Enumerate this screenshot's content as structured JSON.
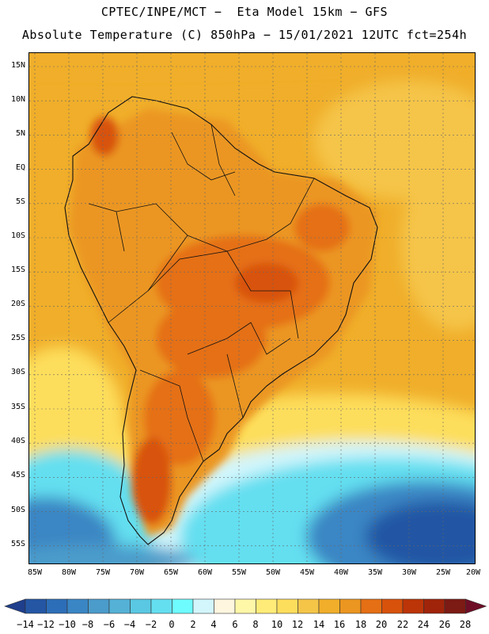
{
  "header": {
    "line1": "CPTEC/INPE/MCT −  Eta Model 15km − GFS",
    "line2": "Absolute Temperature (C) 850hPa − 15/01/2021 12UTC fct=254h"
  },
  "map": {
    "lat_labels": [
      "15N",
      "10N",
      "5N",
      "EQ",
      "5S",
      "10S",
      "15S",
      "20S",
      "25S",
      "30S",
      "35S",
      "40S",
      "45S",
      "50S",
      "55S"
    ],
    "lon_labels": [
      "85W",
      "80W",
      "75W",
      "70W",
      "65W",
      "60W",
      "55W",
      "50W",
      "45W",
      "40W",
      "35W",
      "30W",
      "25W",
      "20W"
    ],
    "lon_range": [
      -85,
      -20
    ],
    "lat_range": [
      -57,
      17
    ]
  },
  "colorbar": {
    "labels": [
      "−14",
      "−12",
      "−10",
      "−8",
      "−6",
      "−4",
      "−2",
      "0",
      "2",
      "4",
      "6",
      "8",
      "10",
      "12",
      "14",
      "16",
      "18",
      "20",
      "22",
      "24",
      "26",
      "28"
    ],
    "colors": [
      "#1f3e8c",
      "#2456a4",
      "#2d6eb8",
      "#3a86c4",
      "#4b9ccb",
      "#55b1d6",
      "#5ac8e2",
      "#64dff0",
      "#6ffcff",
      "#d2f6fc",
      "#fff6e0",
      "#fff7a8",
      "#ffec78",
      "#fdde5c",
      "#f5c548",
      "#f0ae2a",
      "#eb9620",
      "#e56f14",
      "#d8520c",
      "#bc3508",
      "#a0240a",
      "#7c1a14",
      "#6e0e26"
    ]
  }
}
